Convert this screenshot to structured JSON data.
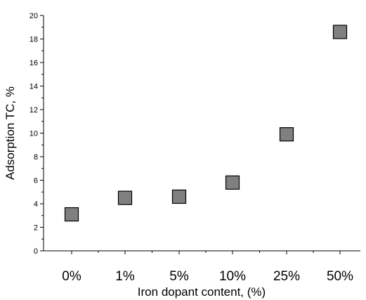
{
  "chart_data": {
    "type": "scatter",
    "title": "",
    "xlabel": "Iron dopant content, (%)",
    "ylabel": "Adsorption TC, %",
    "categories": [
      "0%",
      "1%",
      "5%",
      "10%",
      "25%",
      "50%"
    ],
    "series": [
      {
        "values": [
          3.1,
          4.5,
          4.6,
          5.8,
          9.9,
          18.6
        ]
      }
    ],
    "ylim": [
      0,
      20
    ],
    "yticks": [
      "0",
      "2",
      "4",
      "6",
      "8",
      "10",
      "12",
      "14",
      "16",
      "18",
      "20"
    ],
    "grid": false,
    "legend": "none",
    "marker": "square",
    "marker_color": "#808080",
    "marker_edge_color": "#000000"
  }
}
